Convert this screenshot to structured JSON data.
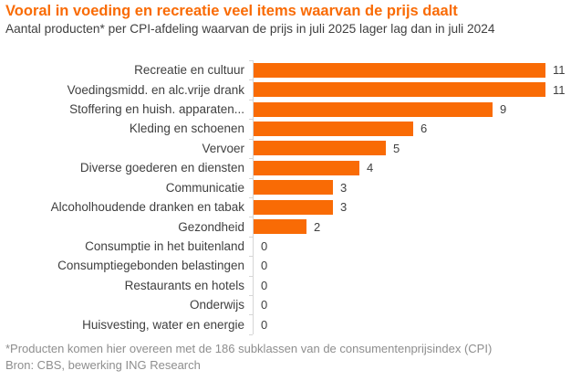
{
  "header": {
    "title": "Vooral in voeding en recreatie veel items waarvan de prijs daalt",
    "subtitle": "Aantal producten* per CPI-afdeling waarvan de prijs in juli 2025 lager lag dan in juli 2024"
  },
  "chart_data": {
    "type": "bar",
    "orientation": "horizontal",
    "title": "Vooral in voeding en recreatie veel items waarvan de prijs daalt",
    "subtitle": "Aantal producten* per CPI-afdeling waarvan de prijs in juli 2025 lager lag dan in juli 2024",
    "categories": [
      "Recreatie en cultuur",
      "Voedingsmidd. en alc.vrije drank",
      "Stoffering en huish. apparaten...",
      "Kleding en schoenen",
      "Vervoer",
      "Diverse goederen en diensten",
      "Communicatie",
      "Alcoholhoudende dranken en tabak",
      "Gezondheid",
      "Consumptie in het buitenland",
      "Consumptiegebonden belastingen",
      "Restaurants en hotels",
      "Onderwijs",
      "Huisvesting, water en energie"
    ],
    "values": [
      11,
      11,
      9,
      6,
      5,
      4,
      3,
      3,
      2,
      0,
      0,
      0,
      0,
      0
    ],
    "xlabel": "",
    "ylabel": "",
    "xlim": [
      0,
      11
    ],
    "grid": false,
    "legend": false,
    "value_labels": true,
    "bar_color": "#F96B05"
  },
  "footer": {
    "footnote": "*Producten komen hier overeen met de 186 subklassen van de consumentenprijsindex (CPI)",
    "source": "Bron: CBS, bewerking ING Research"
  },
  "colors": {
    "accent": "#F96B05",
    "text": "#404040",
    "muted": "#8E8E8E",
    "axis": "#D6D6D6",
    "background": "#FFFFFF"
  }
}
